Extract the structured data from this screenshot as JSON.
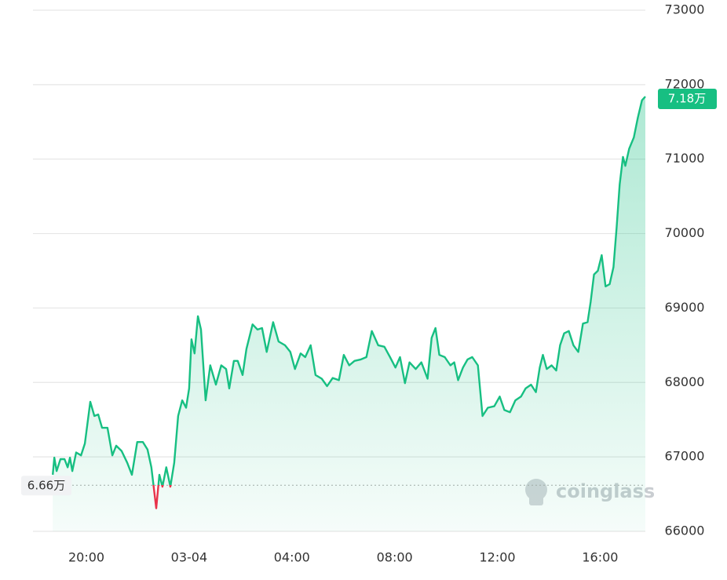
{
  "chart_data": {
    "type": "line",
    "x": [
      -5.31,
      -5.25,
      -5.16,
      -5.01,
      -4.85,
      -4.73,
      -4.64,
      -4.55,
      -4.4,
      -4.21,
      -4.06,
      -3.85,
      -3.69,
      -3.54,
      -3.39,
      -3.18,
      -2.99,
      -2.84,
      -2.63,
      -2.41,
      -2.23,
      -2.02,
      -1.8,
      -1.62,
      -1.47,
      -1.28,
      -1.16,
      -1.04,
      -0.89,
      -0.73,
      -0.58,
      -0.43,
      -0.27,
      -0.12,
      0,
      0.09,
      0.21,
      0.34,
      0.46,
      0.64,
      0.82,
      1.04,
      1.25,
      1.44,
      1.56,
      1.74,
      1.89,
      2.08,
      2.23,
      2.47,
      2.66,
      2.84,
      3.02,
      3.27,
      3.48,
      3.73,
      3.94,
      4.12,
      4.34,
      4.52,
      4.73,
      4.92,
      5.16,
      5.37,
      5.59,
      5.83,
      6.02,
      6.23,
      6.44,
      6.69,
      6.9,
      7.11,
      7.36,
      7.6,
      7.82,
      8.03,
      8.21,
      8.4,
      8.58,
      8.82,
      9.04,
      9.28,
      9.44,
      9.59,
      9.74,
      9.95,
      10.17,
      10.32,
      10.47,
      10.66,
      10.84,
      11.02,
      11.24,
      11.42,
      11.63,
      11.88,
      12.09,
      12.27,
      12.49,
      12.7,
      12.92,
      13.1,
      13.31,
      13.5,
      13.65,
      13.77,
      13.92,
      14.11,
      14.29,
      14.44,
      14.6,
      14.78,
      14.96,
      15.15,
      15.33,
      15.51,
      15.63,
      15.76,
      15.91,
      16.06,
      16.21,
      16.37,
      16.52,
      16.64,
      16.76,
      16.89,
      16.98,
      17.13,
      17.31,
      17.47,
      17.63,
      17.76
    ],
    "values": [
      66760,
      66990,
      66810,
      66970,
      66970,
      66860,
      66990,
      66810,
      67060,
      67020,
      67180,
      67740,
      67550,
      67570,
      67390,
      67390,
      67020,
      67150,
      67080,
      66920,
      66760,
      67200,
      67200,
      67100,
      66860,
      66310,
      66760,
      66600,
      66860,
      66600,
      66920,
      67550,
      67760,
      67660,
      67920,
      68580,
      68390,
      68890,
      68710,
      67760,
      68230,
      67970,
      68230,
      68180,
      67920,
      68290,
      68290,
      68100,
      68450,
      68780,
      68710,
      68730,
      68410,
      68810,
      68550,
      68500,
      68410,
      68180,
      68390,
      68340,
      68500,
      68100,
      68050,
      67950,
      68060,
      68030,
      68370,
      68230,
      68290,
      68310,
      68340,
      68690,
      68500,
      68480,
      68340,
      68200,
      68340,
      67990,
      68270,
      68180,
      68270,
      68050,
      68600,
      68730,
      68370,
      68340,
      68230,
      68270,
      68030,
      68200,
      68310,
      68340,
      68230,
      67550,
      67660,
      67680,
      67810,
      67630,
      67600,
      67760,
      67810,
      67920,
      67970,
      67870,
      68200,
      68370,
      68180,
      68230,
      68160,
      68500,
      68660,
      68690,
      68500,
      68410,
      68790,
      68810,
      69080,
      69450,
      69500,
      69710,
      69290,
      69320,
      69550,
      70080,
      70660,
      71030,
      70910,
      71140,
      71290,
      71560,
      71790,
      71840
    ],
    "color": "#17bf82",
    "down_color": "#e8334a",
    "reference": {
      "value": 66620,
      "label": "6.66万"
    },
    "last_value_label": "7.18万",
    "watermark": "coinglass",
    "xlim": [
      -6.08,
      17.76
    ],
    "xticks": [
      {
        "value": -4,
        "label": "20:00"
      },
      {
        "value": 0,
        "label": "03-04"
      },
      {
        "value": 4,
        "label": "04:00"
      },
      {
        "value": 8,
        "label": "08:00"
      },
      {
        "value": 12,
        "label": "12:00"
      },
      {
        "value": 16,
        "label": "16:00"
      }
    ],
    "ylim": [
      66000,
      73000
    ],
    "yticks": [
      66000,
      67000,
      68000,
      69000,
      70000,
      71000,
      72000,
      73000
    ],
    "grid": true
  }
}
